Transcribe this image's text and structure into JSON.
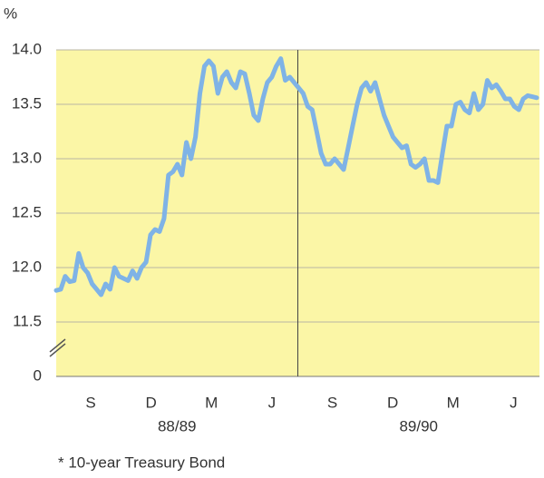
{
  "chart_data": {
    "type": "line",
    "y_unit": "%",
    "footnote": "* 10-year Treasury Bond",
    "month_labels": [
      "S",
      "D",
      "M",
      "J",
      "S",
      "D",
      "M",
      "J"
    ],
    "period_labels": [
      "88/89",
      "89/90"
    ],
    "color": "#7fb3e6",
    "background": "#fbf6a6",
    "grid": true,
    "ylim": [
      0,
      14
    ],
    "axis_break": [
      0,
      11
    ],
    "yticks": [
      {
        "value": 14,
        "label": "14.0"
      },
      {
        "value": 13.5,
        "label": "13.5"
      },
      {
        "value": 13,
        "label": "13.0"
      },
      {
        "value": 12.5,
        "label": "12.5"
      },
      {
        "value": 12,
        "label": "12.0"
      },
      {
        "value": 11.5,
        "label": "11.5"
      },
      0
    ],
    "values": [
      11.79,
      11.8,
      11.92,
      11.87,
      11.88,
      12.13,
      12.0,
      11.95,
      11.85,
      11.8,
      11.75,
      11.85,
      11.8,
      12.0,
      11.92,
      11.9,
      11.88,
      11.97,
      11.9,
      12.0,
      12.05,
      12.3,
      12.35,
      12.33,
      12.45,
      12.85,
      12.88,
      12.95,
      12.85,
      13.15,
      13.0,
      13.2,
      13.6,
      13.85,
      13.9,
      13.85,
      13.6,
      13.75,
      13.8,
      13.7,
      13.65,
      13.8,
      13.78,
      13.6,
      13.4,
      13.35,
      13.55,
      13.7,
      13.75,
      13.85,
      13.92,
      13.72,
      13.75,
      13.7,
      13.65,
      13.6,
      13.48,
      13.45,
      13.25,
      13.05,
      12.95,
      12.95,
      13.0,
      12.95,
      12.9,
      13.1,
      13.3,
      13.5,
      13.65,
      13.7,
      13.62,
      13.7,
      13.55,
      13.4,
      13.3,
      13.2,
      13.15,
      13.1,
      13.12,
      12.95,
      12.92,
      12.95,
      13.0,
      12.8,
      12.8,
      12.78,
      13.05,
      13.3,
      13.3,
      13.5,
      13.52,
      13.45,
      13.42,
      13.6,
      13.45,
      13.5,
      13.72,
      13.65,
      13.68,
      13.62,
      13.55,
      13.55,
      13.48,
      13.45,
      13.55,
      13.58,
      13.57,
      13.56
    ]
  }
}
